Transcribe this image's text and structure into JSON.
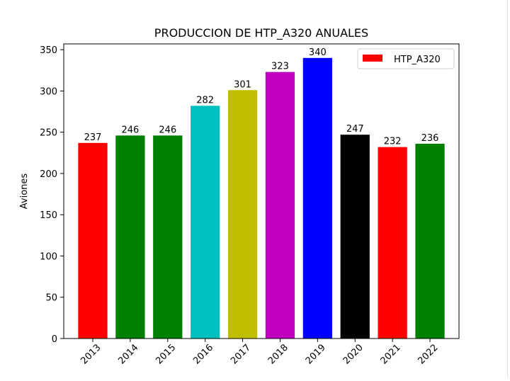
{
  "chart_data": {
    "type": "bar",
    "title": "PRODUCCION DE HTP_A320 ANUALES",
    "xlabel": "",
    "ylabel": "Aviones",
    "ylim": [
      0,
      357
    ],
    "yticks": [
      0,
      50,
      100,
      150,
      200,
      250,
      300,
      350
    ],
    "categories": [
      "2013",
      "2014",
      "2015",
      "2016",
      "2017",
      "2018",
      "2019",
      "2020",
      "2021",
      "2022"
    ],
    "values": [
      237,
      246,
      246,
      282,
      301,
      323,
      340,
      247,
      232,
      236
    ],
    "bar_colors": [
      "#ff0000",
      "#008000",
      "#008000",
      "#00bfbf",
      "#bfbf00",
      "#bf00bf",
      "#0000ff",
      "#000000",
      "#ff0000",
      "#008000"
    ],
    "data_labels": [
      "237",
      "246",
      "246",
      "282",
      "301",
      "323",
      "340",
      "247",
      "232",
      "236"
    ],
    "legend": {
      "label": "HTP_A320",
      "color": "#ff0000",
      "placement": "top-right"
    },
    "grid": false,
    "xtick_rotation": 45
  }
}
